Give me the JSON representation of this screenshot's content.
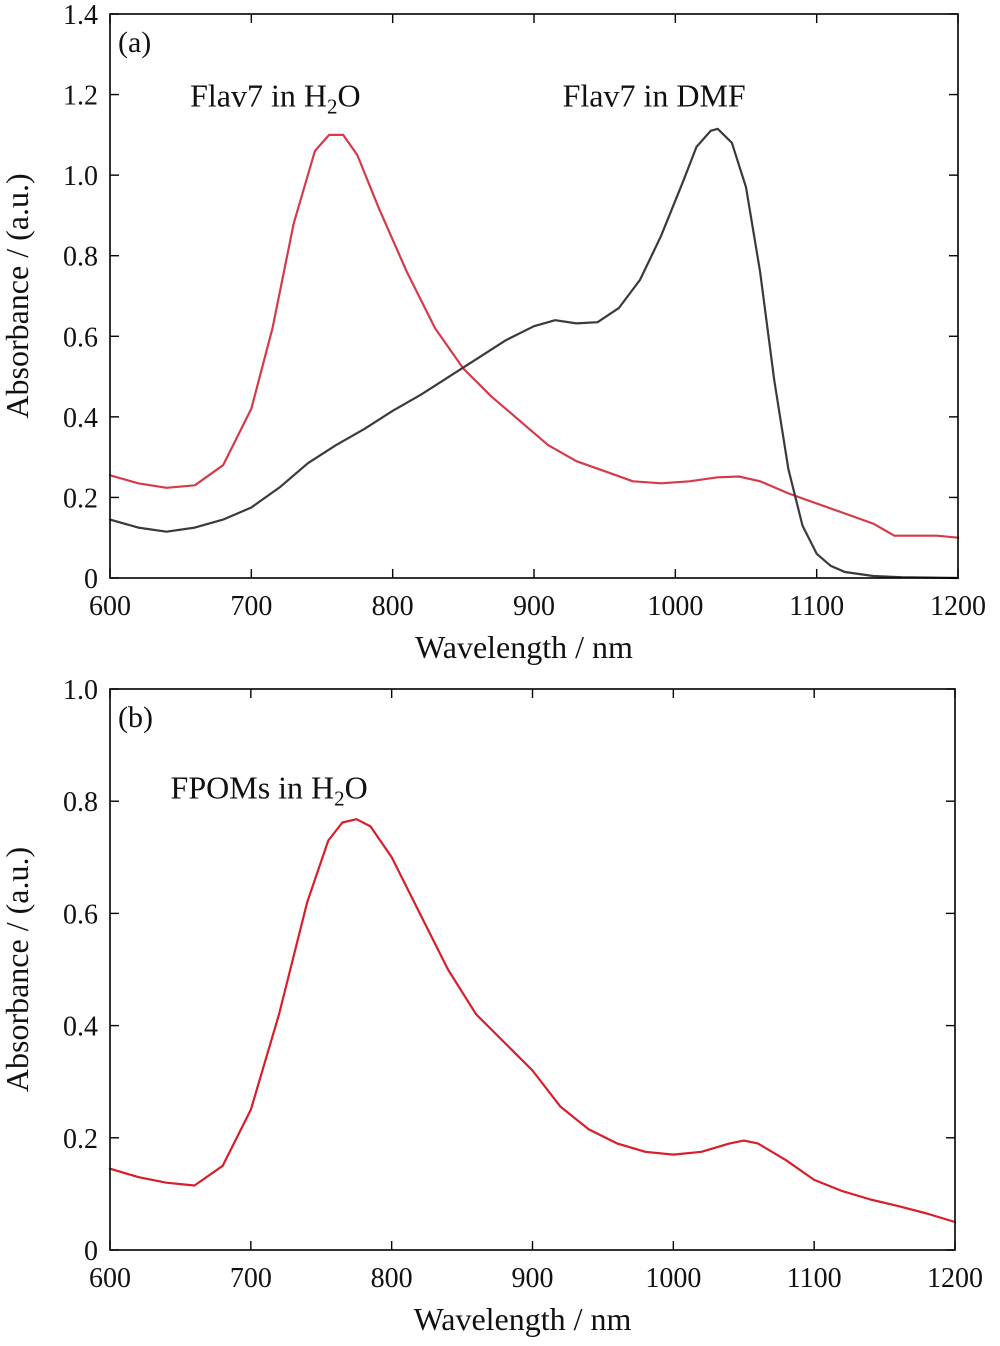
{
  "chart_data": [
    {
      "type": "line",
      "panel_label": "(a)",
      "xlabel": "Wavelength / nm",
      "ylabel": "Absorbance / (a.u.)",
      "xlim": [
        600,
        1200
      ],
      "ylim": [
        0,
        1.4
      ],
      "xticks": [
        600,
        700,
        800,
        900,
        1000,
        1100,
        1200
      ],
      "xtick_labels": [
        "600",
        "700",
        "800",
        "900",
        "1000",
        "1100",
        "1200"
      ],
      "yticks": [
        0,
        0.2,
        0.4,
        0.6,
        0.8,
        1.0,
        1.2,
        1.4
      ],
      "ytick_labels": [
        "0",
        "0.2",
        "0.4",
        "0.6",
        "0.8",
        "1.0",
        "1.2",
        "1.4"
      ],
      "grid": false,
      "annotations": [
        {
          "text": "Flav7 in H",
          "sub": "2",
          "tail": "O",
          "x": 717,
          "y": 1.17
        },
        {
          "text": "Flav7 in DMF",
          "sub": "",
          "tail": "",
          "x": 985,
          "y": 1.17
        }
      ],
      "series": [
        {
          "color": "#d63a4a",
          "x": [
            600,
            620,
            640,
            660,
            680,
            700,
            715,
            730,
            745,
            755,
            765,
            775,
            790,
            810,
            830,
            850,
            870,
            890,
            910,
            930,
            950,
            970,
            990,
            1010,
            1030,
            1045,
            1060,
            1080,
            1100,
            1120,
            1140,
            1155,
            1170,
            1185,
            1200
          ],
          "y": [
            0.255,
            0.235,
            0.224,
            0.23,
            0.28,
            0.42,
            0.62,
            0.88,
            1.06,
            1.1,
            1.1,
            1.05,
            0.92,
            0.76,
            0.62,
            0.52,
            0.45,
            0.39,
            0.33,
            0.29,
            0.265,
            0.24,
            0.235,
            0.24,
            0.25,
            0.252,
            0.24,
            0.21,
            0.185,
            0.16,
            0.135,
            0.105,
            0.105,
            0.105,
            0.1
          ]
        },
        {
          "color": "#3a3a3a",
          "x": [
            600,
            620,
            640,
            660,
            680,
            700,
            720,
            740,
            760,
            780,
            800,
            820,
            840,
            860,
            880,
            900,
            915,
            930,
            945,
            960,
            975,
            990,
            1005,
            1015,
            1025,
            1030,
            1040,
            1050,
            1060,
            1070,
            1080,
            1090,
            1100,
            1110,
            1120,
            1140,
            1160,
            1180,
            1200
          ],
          "y": [
            0.145,
            0.125,
            0.115,
            0.125,
            0.145,
            0.175,
            0.225,
            0.285,
            0.33,
            0.37,
            0.415,
            0.455,
            0.5,
            0.545,
            0.59,
            0.625,
            0.64,
            0.632,
            0.635,
            0.67,
            0.74,
            0.85,
            0.98,
            1.07,
            1.11,
            1.115,
            1.08,
            0.97,
            0.76,
            0.49,
            0.27,
            0.13,
            0.06,
            0.03,
            0.015,
            0.005,
            0.002,
            0.001,
            0.0
          ]
        }
      ]
    },
    {
      "type": "line",
      "panel_label": "(b)",
      "xlabel": "Wavelength / nm",
      "ylabel": "Absorbance / (a.u.)",
      "xlim": [
        600,
        1200
      ],
      "ylim": [
        0,
        1.0
      ],
      "xticks": [
        600,
        700,
        800,
        900,
        1000,
        1100,
        1200
      ],
      "xtick_labels": [
        "600",
        "700",
        "800",
        "900",
        "1000",
        "1100",
        "1200"
      ],
      "yticks": [
        0,
        0.2,
        0.4,
        0.6,
        0.8,
        1.0
      ],
      "ytick_labels": [
        "0",
        "0.2",
        "0.4",
        "0.6",
        "0.8",
        "1.0"
      ],
      "grid": false,
      "annotations": [
        {
          "text": "FPOMs in H",
          "sub": "2",
          "tail": "O",
          "x": 713,
          "y": 0.805
        }
      ],
      "series": [
        {
          "color": "#d81e2a",
          "x": [
            600,
            620,
            640,
            660,
            680,
            700,
            720,
            740,
            755,
            765,
            775,
            785,
            800,
            820,
            840,
            860,
            880,
            900,
            920,
            940,
            960,
            980,
            1000,
            1020,
            1040,
            1050,
            1060,
            1080,
            1100,
            1120,
            1140,
            1160,
            1180,
            1200
          ],
          "y": [
            0.145,
            0.13,
            0.12,
            0.115,
            0.15,
            0.25,
            0.42,
            0.62,
            0.73,
            0.762,
            0.768,
            0.755,
            0.7,
            0.6,
            0.5,
            0.42,
            0.37,
            0.32,
            0.255,
            0.215,
            0.19,
            0.175,
            0.17,
            0.175,
            0.19,
            0.195,
            0.19,
            0.16,
            0.125,
            0.105,
            0.09,
            0.078,
            0.065,
            0.05
          ]
        }
      ]
    }
  ]
}
